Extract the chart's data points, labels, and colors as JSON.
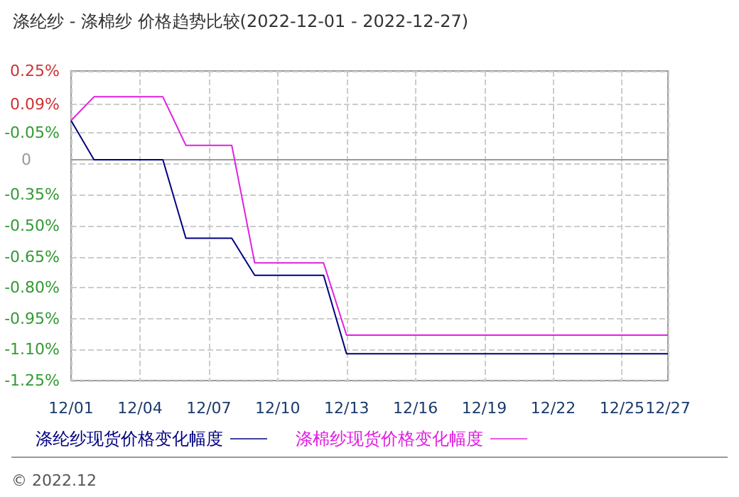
{
  "chart_data": {
    "type": "line",
    "title": "涤纶纱 - 涤棉纱 价格趋势比较(2022-12-01 - 2022-12-27)",
    "categories": [
      "12/01",
      null,
      null,
      "12/04",
      null,
      null,
      "12/07",
      null,
      null,
      "12/10",
      null,
      null,
      "12/13",
      null,
      null,
      "12/16",
      null,
      null,
      "12/19",
      null,
      null,
      "12/22",
      null,
      null,
      "12/25",
      null,
      "12/27"
    ],
    "series": [
      {
        "name": "涤纶纱现货价格变化幅度",
        "color": "#000080",
        "values": [
          0.01,
          -0.18,
          -0.18,
          -0.18,
          -0.18,
          -0.56,
          -0.56,
          -0.56,
          -0.74,
          -0.74,
          -0.74,
          -0.74,
          -1.12,
          -1.12,
          -1.12,
          -1.12,
          -1.12,
          -1.12,
          -1.12,
          -1.12,
          -1.12,
          -1.12,
          -1.12,
          -1.12,
          -1.12,
          -1.12,
          -1.12
        ]
      },
      {
        "name": "涤棉纱现货价格变化幅度",
        "color": "#e020e0",
        "values": [
          0.01,
          0.125,
          0.125,
          0.125,
          0.125,
          -0.11,
          -0.11,
          -0.11,
          -0.68,
          -0.68,
          -0.68,
          -0.68,
          -1.03,
          -1.03,
          -1.03,
          -1.03,
          -1.03,
          -1.03,
          -1.03,
          -1.03,
          -1.03,
          -1.03,
          -1.03,
          -1.03,
          -1.03,
          -1.03,
          -1.03
        ]
      }
    ],
    "ylim": [
      -1.25,
      0.25
    ],
    "yticks": [
      {
        "value": -1.25,
        "label": "-1.25%"
      },
      {
        "value": -1.1,
        "label": "-1.10%"
      },
      {
        "value": -0.95,
        "label": "-0.95%"
      },
      {
        "value": -0.8,
        "label": "-0.80%"
      },
      {
        "value": -0.65,
        "label": "-0.65%"
      },
      {
        "value": -0.5,
        "label": "-0.50%"
      },
      {
        "value": -0.35,
        "label": "-0.35%"
      },
      {
        "value": -0.2,
        "label": null
      },
      {
        "value": -0.05,
        "label": "-0.05%"
      },
      {
        "value": 0.09,
        "label": "0.09%"
      },
      {
        "value": 0.25,
        "label": "0.25%"
      }
    ],
    "ref_lines": [
      {
        "axis": "y",
        "value": -0.18,
        "label": "0",
        "color": "#999999"
      }
    ],
    "grid": true,
    "legend": "bottom",
    "marker": "none",
    "line_style": "solid",
    "annotations": [
      "© 2022.12"
    ]
  }
}
